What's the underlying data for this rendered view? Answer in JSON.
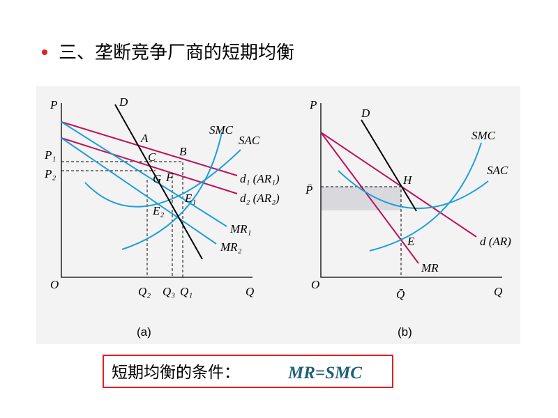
{
  "title": "三、垄断竞争厂商的短期均衡",
  "panel_a": {
    "caption": "(a)",
    "axis": {
      "y": "P",
      "x": "Q",
      "origin": "O"
    },
    "curves": {
      "D": "D",
      "SMC": "SMC",
      "SAC": "SAC",
      "d1": "d₁ (AR₁)",
      "d2": "d₂ (AR₂)",
      "MR1": "MR₁",
      "MR2": "MR₂"
    },
    "points": {
      "A": "A",
      "B": "B",
      "C": "C",
      "G": "G",
      "F": "F",
      "E1": "E₁",
      "E2": "E₂"
    },
    "prices": {
      "P1": "P₁",
      "P2": "P₂"
    },
    "quantities": {
      "Q2": "Q₂",
      "Q3": "Q₃",
      "Q1": "Q₁"
    }
  },
  "panel_b": {
    "caption": "(b)",
    "axis": {
      "y": "P",
      "x": "Q",
      "origin": "O"
    },
    "curves": {
      "D": "D",
      "SMC": "SMC",
      "SAC": "SAC",
      "d": "d (AR)",
      "MR": "MR"
    },
    "points": {
      "H": "H",
      "E": "E"
    },
    "price": "P̄",
    "quantity": "Q̄"
  },
  "condition": {
    "label": "短期均衡的条件：",
    "formula": "MR=SMC"
  }
}
